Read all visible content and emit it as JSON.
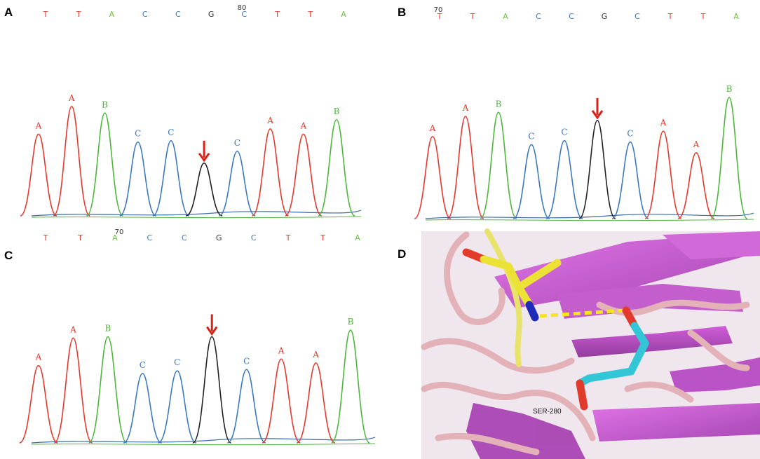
{
  "colors": {
    "T": "#e8382d",
    "A": "#6bbf3e",
    "C": "#3c79bf",
    "G": "#333333",
    "peakA": "#e8382d",
    "peakB": "#4cb83a",
    "peakC": "#3c79bf",
    "peakG": "#222222",
    "arrow": "#d92218"
  },
  "panels": [
    {
      "id": "A",
      "label": "A",
      "sequence": [
        "T",
        "T",
        "A",
        "C",
        "C",
        "G",
        "C",
        "T",
        "T",
        "A"
      ],
      "position_label": "80",
      "peaks": [
        {
          "label": "A",
          "color": "peakA",
          "h": 0.62
        },
        {
          "label": "A",
          "color": "peakA",
          "h": 0.83
        },
        {
          "label": "B",
          "color": "peakB",
          "h": 0.78
        },
        {
          "label": "C",
          "color": "peakC",
          "h": 0.56
        },
        {
          "label": "C",
          "color": "peakC",
          "h": 0.57
        },
        {
          "label": "",
          "color": "peakG",
          "h": 0.4,
          "arrow": true
        },
        {
          "label": "C",
          "color": "peakC",
          "h": 0.49
        },
        {
          "label": "A",
          "color": "peakA",
          "h": 0.66
        },
        {
          "label": "A",
          "color": "peakA",
          "h": 0.62
        },
        {
          "label": "B",
          "color": "peakB",
          "h": 0.73
        }
      ]
    },
    {
      "id": "B",
      "label": "B",
      "sequence": [
        "T",
        "T",
        "A",
        "C",
        "C",
        "G",
        "C",
        "T",
        "T",
        "A"
      ],
      "position_label": "70",
      "peaks": [
        {
          "label": "A",
          "color": "peakA",
          "h": 0.61
        },
        {
          "label": "A",
          "color": "peakA",
          "h": 0.76
        },
        {
          "label": "B",
          "color": "peakB",
          "h": 0.79
        },
        {
          "label": "C",
          "color": "peakC",
          "h": 0.55
        },
        {
          "label": "C",
          "color": "peakC",
          "h": 0.58
        },
        {
          "label": "",
          "color": "peakG",
          "h": 0.73,
          "arrow": true
        },
        {
          "label": "C",
          "color": "peakC",
          "h": 0.57
        },
        {
          "label": "A",
          "color": "peakA",
          "h": 0.65
        },
        {
          "label": "A",
          "color": "peakA",
          "h": 0.49
        },
        {
          "label": "B",
          "color": "peakB",
          "h": 0.9
        }
      ]
    },
    {
      "id": "C",
      "label": "C",
      "sequence": [
        "T",
        "T",
        "A",
        "C",
        "C",
        "G",
        "C",
        "T",
        "T",
        "A"
      ],
      "position_label": "70",
      "peaks": [
        {
          "label": "A",
          "color": "peakA",
          "h": 0.59
        },
        {
          "label": "A",
          "color": "peakA",
          "h": 0.8
        },
        {
          "label": "B",
          "color": "peakB",
          "h": 0.81
        },
        {
          "label": "C",
          "color": "peakC",
          "h": 0.53
        },
        {
          "label": "C",
          "color": "peakC",
          "h": 0.55
        },
        {
          "label": "",
          "color": "peakG",
          "h": 0.81,
          "arrow": true
        },
        {
          "label": "C",
          "color": "peakC",
          "h": 0.56
        },
        {
          "label": "A",
          "color": "peakA",
          "h": 0.64
        },
        {
          "label": "A",
          "color": "peakA",
          "h": 0.61
        },
        {
          "label": "B",
          "color": "peakB",
          "h": 0.86
        }
      ]
    }
  ],
  "panel_d": {
    "label": "D",
    "residue_label": "SER-280"
  }
}
